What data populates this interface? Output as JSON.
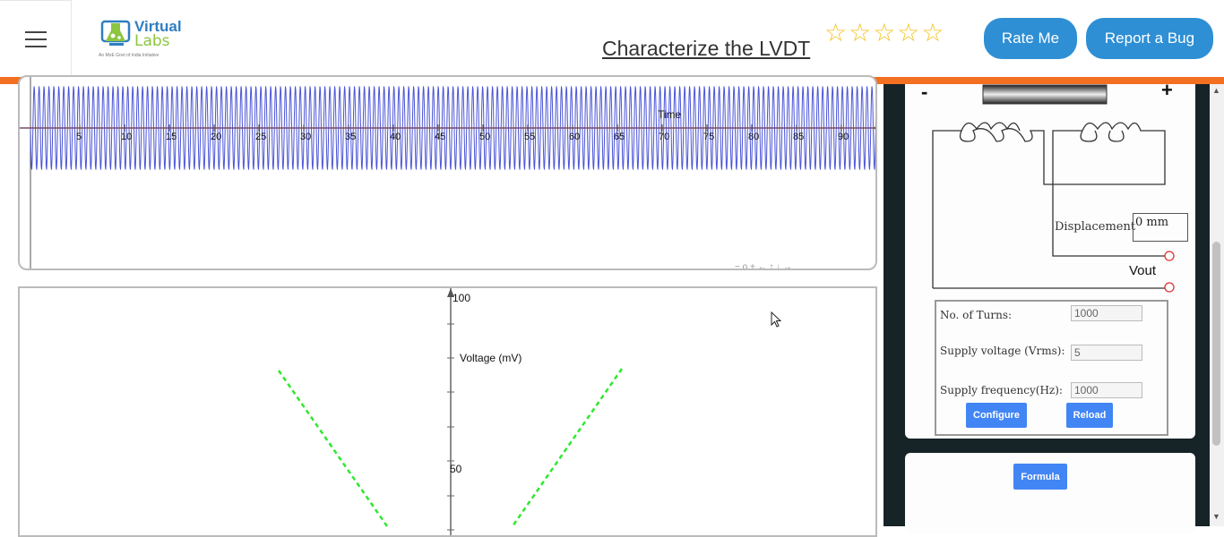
{
  "header": {
    "logo_line1": "Virtual",
    "logo_line2": "Labs",
    "logo_tagline": "An MoE Govt of India Initiative",
    "title": "Characterize the LVDT",
    "rating_stars": "☆☆☆☆☆",
    "rating_value": 0,
    "rate_button": "Rate Me",
    "bug_button": "Report a Bug"
  },
  "waveform": {
    "x_axis_label": "Time",
    "x_ticks": [
      "5",
      "10",
      "15",
      "20",
      "25",
      "30",
      "35",
      "40",
      "45",
      "50",
      "55",
      "60",
      "65",
      "70",
      "75",
      "80",
      "85",
      "90"
    ],
    "toolbar": "− o + ← ↑ ↓ →"
  },
  "characteristic": {
    "y_axis_label": "Voltage (mV)",
    "y_ticks": [
      "100",
      "50"
    ]
  },
  "simulator": {
    "minus": "-",
    "plus": "+",
    "displacement_label": "Displacement",
    "displacement_value": "0 mm",
    "vout_label": "Vout",
    "turns_label": "No. of Turns:",
    "turns_value": "1000",
    "supply_voltage_label": "Supply voltage (Vrms):",
    "supply_voltage_value": "5",
    "supply_freq_label": "Supply frequency(Hz):",
    "supply_freq_value": "1000",
    "configure_button": "Configure",
    "reload_button": "Reload",
    "formula_button": "Formula"
  },
  "colors": {
    "accent_orange": "#f36f21",
    "button_blue": "#2e8fd5",
    "wave_blue": "#4b55d6",
    "curve_green": "#2ee82e",
    "panel_dark": "#162327"
  }
}
